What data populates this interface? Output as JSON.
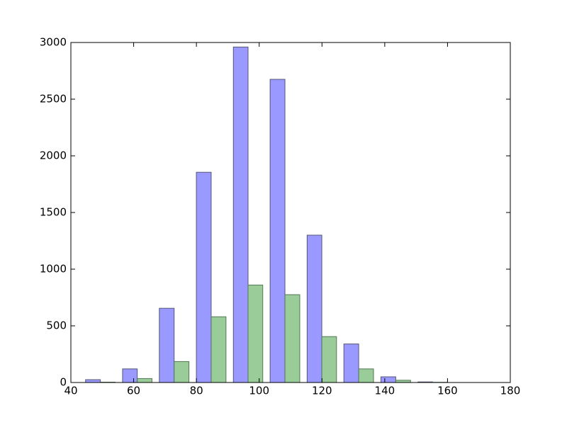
{
  "chart_data": {
    "type": "histogram",
    "bins": [
      43.5,
      55.3,
      67.0,
      78.8,
      90.6,
      102.3,
      114.1,
      125.8,
      137.6,
      149.4,
      161.1
    ],
    "series": [
      {
        "color": "#9999ff",
        "edge": "#555577",
        "values": [
          25,
          120,
          655,
          1855,
          2960,
          2675,
          1300,
          340,
          50,
          5
        ]
      },
      {
        "color": "#99cc99",
        "edge": "#557755",
        "values": [
          3,
          35,
          185,
          580,
          860,
          775,
          405,
          120,
          20,
          2
        ]
      }
    ],
    "xlim": [
      40,
      180
    ],
    "xticks": [
      40,
      60,
      80,
      100,
      120,
      140,
      160,
      180
    ],
    "ylim": [
      0,
      3000
    ],
    "yticks": [
      0,
      500,
      1000,
      1500,
      2000,
      2500,
      3000
    ]
  }
}
